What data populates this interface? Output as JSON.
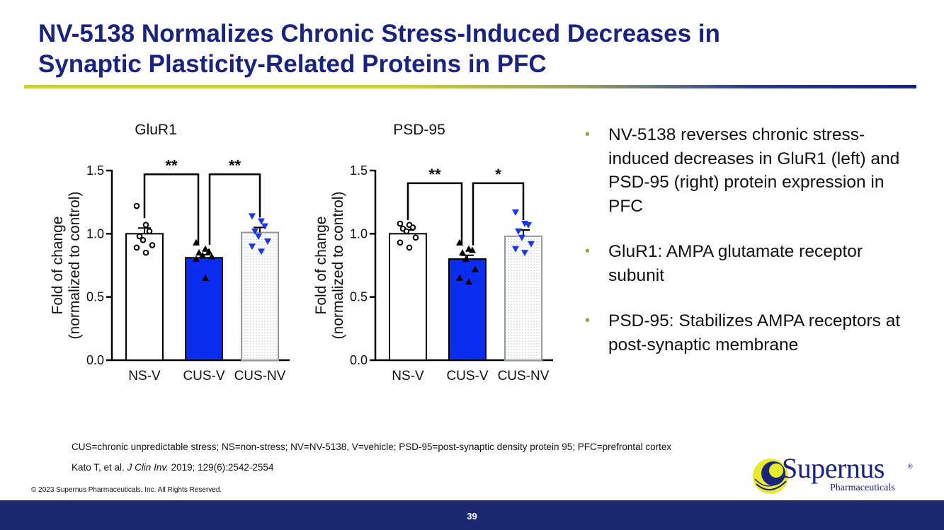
{
  "title": {
    "line1": "NV-5138 Normalizes Chronic Stress-Induced Decreases in",
    "line2": "Synaptic Plasticity-Related Proteins in PFC"
  },
  "colors": {
    "title": "#1a237e",
    "bar_blue": "#0a2df0",
    "dot_blue": "#1a35f0",
    "accent_olive": "#c8d23a",
    "footer_navy": "#1c2870",
    "bullet": "#9aaa3a"
  },
  "chart_data": [
    {
      "type": "bar",
      "title": "GluR1",
      "ylabel_line1": "Fold of change",
      "ylabel_line2": "(normalized to control)",
      "categories": [
        "NS-V",
        "CUS-V",
        "CUS-NV"
      ],
      "values": [
        1.0,
        0.81,
        1.01
      ],
      "errors": [
        0.045,
        0.025,
        0.04
      ],
      "ylim": [
        0,
        1.5
      ],
      "yticks": [
        "0.0",
        "0.5",
        "1.0",
        "1.5"
      ],
      "points": [
        [
          1.22,
          1.07,
          1.02,
          0.98,
          0.95,
          0.91,
          0.89,
          0.85
        ],
        [
          0.93,
          0.88,
          0.86,
          0.85,
          0.83,
          0.82,
          0.8,
          0.65
        ],
        [
          1.14,
          1.1,
          1.06,
          1.02,
          0.98,
          0.94,
          0.9,
          0.86
        ]
      ],
      "markers": [
        "circle-open",
        "triangle-up",
        "triangle-down"
      ],
      "significance": [
        {
          "from": 0,
          "to": 1,
          "label": "**",
          "y": 1.47
        },
        {
          "from": 1,
          "to": 2,
          "label": "**",
          "y": 1.47
        }
      ]
    },
    {
      "type": "bar",
      "title": "PSD-95",
      "ylabel_line1": "Fold of change",
      "ylabel_line2": "(normalized to control)",
      "categories": [
        "NS-V",
        "CUS-V",
        "CUS-NV"
      ],
      "values": [
        1.0,
        0.8,
        0.98
      ],
      "errors": [
        0.03,
        0.03,
        0.05
      ],
      "ylim": [
        0,
        1.5
      ],
      "yticks": [
        "0.0",
        "0.5",
        "1.0",
        "1.5"
      ],
      "points": [
        [
          1.08,
          1.07,
          1.05,
          1.04,
          1.02,
          0.97,
          0.93,
          0.89
        ],
        [
          0.93,
          0.88,
          0.87,
          0.85,
          0.8,
          0.72,
          0.65,
          0.62
        ],
        [
          1.17,
          1.08,
          1.07,
          1.02,
          0.97,
          0.92,
          0.88,
          0.85
        ]
      ],
      "markers": [
        "circle-open",
        "triangle-up",
        "triangle-down"
      ],
      "significance": [
        {
          "from": 0,
          "to": 1,
          "label": "**",
          "y": 1.4
        },
        {
          "from": 1,
          "to": 2,
          "label": "*",
          "y": 1.4
        }
      ]
    }
  ],
  "bullets": [
    "NV-5138 reverses chronic stress-induced decreases in GluR1 (left) and PSD-95 (right) protein expression in PFC",
    "GluR1: AMPA glutamate receptor subunit",
    "PSD-95: Stabilizes AMPA receptors at post-synaptic membrane"
  ],
  "bullet_marker": "•",
  "footnote": "CUS=chronic unpredictable stress; NS=non-stress; NV=NV-5138, V=vehicle; PSD-95=post-synaptic density protein 95; PFC=prefrontal cortex",
  "reference": {
    "authors": "Kato T, et al. ",
    "journal": "J Clin Inv.",
    "details": " 2019; 129(6):2542-2554"
  },
  "copyright": "© 2023 Supernus Pharmaceuticals, Inc. All Rights Reserved.",
  "logo": {
    "name": "Supernus",
    "sub": "Pharmaceuticals",
    "reg": "®"
  },
  "page_number": "39"
}
